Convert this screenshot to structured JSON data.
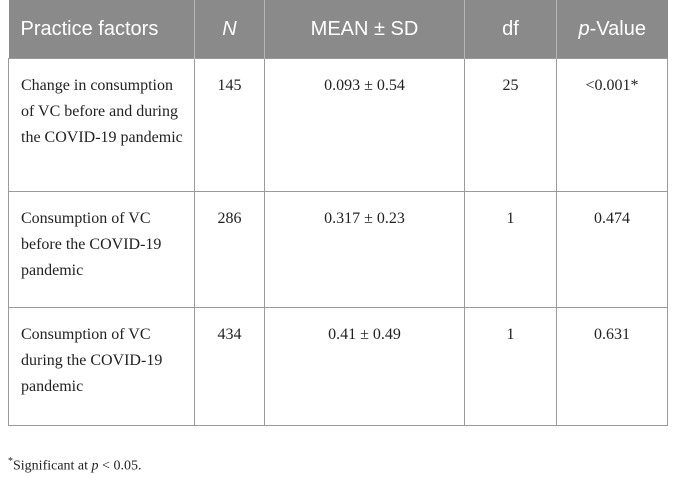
{
  "table": {
    "headers": {
      "factors": "Practice factors",
      "n": "N",
      "mean_sd": "MEAN ± SD",
      "df": "df",
      "p_italic": "p",
      "p_rest": "-Value"
    },
    "rows": [
      {
        "factor": "Change in consumption of VC before and during the COVID-19 pandemic",
        "n": "145",
        "mean_sd": "0.093 ± 0.54",
        "df": "25",
        "p_value": "<0.001*"
      },
      {
        "factor": "Consumption of VC before the COVID-19 pandemic",
        "n": "286",
        "mean_sd": "0.317 ± 0.23",
        "df": "1",
        "p_value": "0.474"
      },
      {
        "factor": "Consumption of VC during the COVID-19 pandemic",
        "n": "434",
        "mean_sd": "0.41 ± 0.49",
        "df": "1",
        "p_value": "0.631"
      }
    ]
  },
  "footnote": {
    "marker": "*",
    "text": "Significant at ",
    "p_symbol": "p",
    "condition": " < 0.05."
  }
}
